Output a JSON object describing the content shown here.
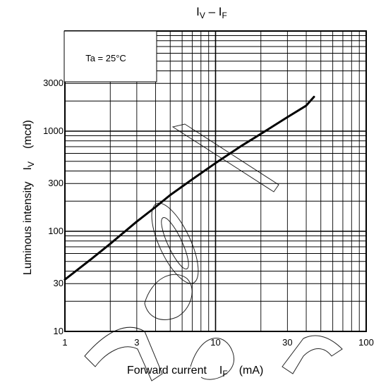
{
  "chart_data": {
    "type": "line",
    "title": {
      "main": "I",
      "sub1": "V",
      "dash": " – ",
      "main2": "I",
      "sub2": "F"
    },
    "annotation": "Ta = 25°C",
    "xlabel": {
      "text": "Forward current",
      "symbol": "I",
      "symbol_sub": "F",
      "unit": "(mA)"
    },
    "ylabel": {
      "text": "Luminous intensity",
      "symbol": "I",
      "symbol_sub": "V",
      "unit": "(mcd)"
    },
    "x_scale": "log",
    "y_scale": "log",
    "xlim": [
      1,
      100
    ],
    "ylim": [
      10,
      10000
    ],
    "x_ticks": [
      1,
      3,
      10,
      30,
      100
    ],
    "x_tick_labels": [
      "1",
      "3",
      "10",
      "30",
      "100"
    ],
    "y_ticks": [
      10,
      30,
      100,
      300,
      1000,
      3000
    ],
    "y_tick_labels": [
      "10",
      "30",
      "100",
      "300",
      "1000",
      "3000"
    ],
    "grid": true,
    "series": [
      {
        "x": [
          1,
          1.5,
          2,
          3,
          4,
          5,
          7,
          10,
          15,
          20,
          30,
          40,
          45
        ],
        "y": [
          33,
          53,
          75,
          125,
          175,
          230,
          330,
          480,
          720,
          940,
          1380,
          1800,
          2200
        ]
      }
    ]
  }
}
